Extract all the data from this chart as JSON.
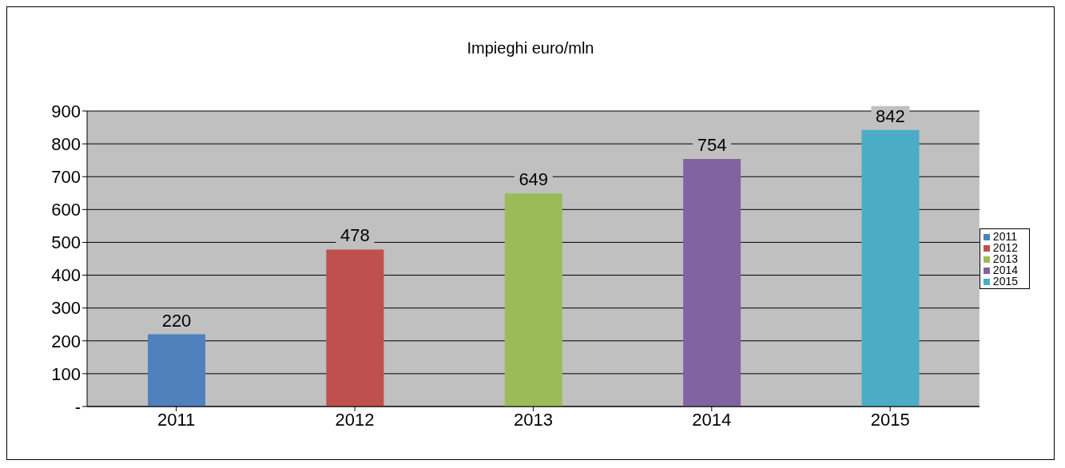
{
  "chart_data": {
    "type": "bar",
    "title": "Impieghi euro/mln",
    "categories": [
      "2011",
      "2012",
      "2013",
      "2014",
      "2015"
    ],
    "series": [
      {
        "name": "2011",
        "color": "#4f81bd",
        "values": [
          220,
          null,
          null,
          null,
          null
        ]
      },
      {
        "name": "2012",
        "color": "#c0504d",
        "values": [
          null,
          478,
          null,
          null,
          null
        ]
      },
      {
        "name": "2013",
        "color": "#9bbb59",
        "values": [
          null,
          null,
          649,
          null,
          null
        ]
      },
      {
        "name": "2014",
        "color": "#8064a2",
        "values": [
          null,
          null,
          null,
          754,
          null
        ]
      },
      {
        "name": "2015",
        "color": "#4bacc6",
        "values": [
          null,
          null,
          null,
          null,
          842
        ]
      }
    ],
    "ylim": [
      0,
      900
    ],
    "yticks": [
      {
        "value": 0,
        "label": "-"
      },
      100,
      200,
      300,
      400,
      500,
      600,
      700,
      800,
      900
    ],
    "grid": "y",
    "legend": "right",
    "data_labels": true
  }
}
